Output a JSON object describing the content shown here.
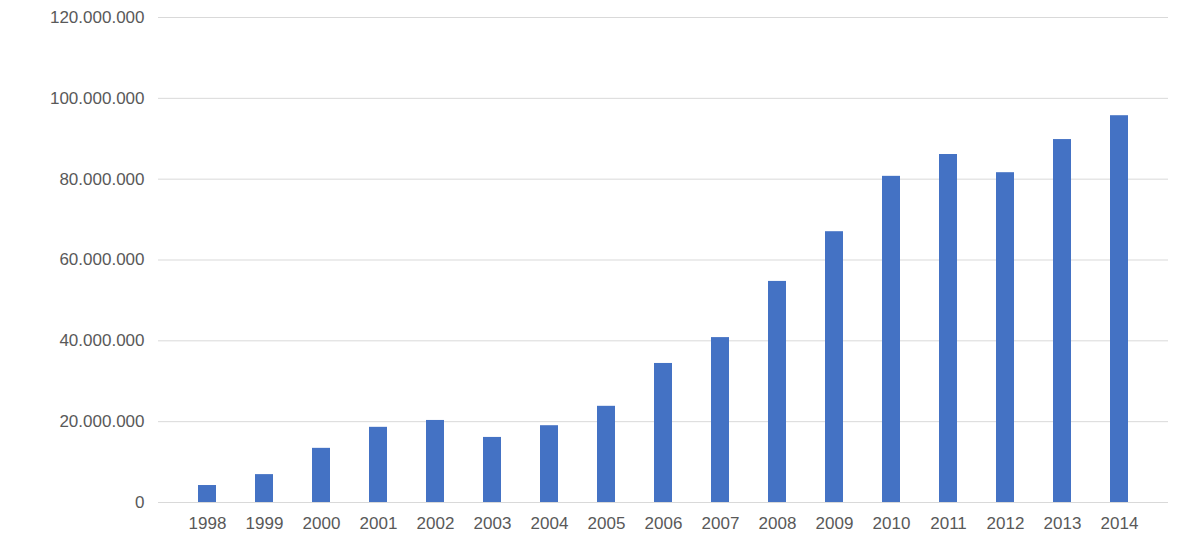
{
  "chart_data": {
    "type": "bar",
    "categories": [
      "1998",
      "1999",
      "2000",
      "2001",
      "2002",
      "2003",
      "2004",
      "2005",
      "2006",
      "2007",
      "2008",
      "2009",
      "2010",
      "2011",
      "2012",
      "2013",
      "2014"
    ],
    "values": [
      4200000,
      6900000,
      13400000,
      18600000,
      20300000,
      16100000,
      19000000,
      23800000,
      34400000,
      40800000,
      54700000,
      67000000,
      80700000,
      86100000,
      81600000,
      89800000,
      95700000
    ],
    "color": "#4472c4",
    "ylim": [
      0,
      120000000
    ],
    "yticks": [
      0,
      {
        "value": 20000000,
        "label": "20.000.000"
      },
      {
        "value": 40000000,
        "label": "40.000.000"
      },
      {
        "value": 60000000,
        "label": "60.000.000"
      },
      {
        "value": 80000000,
        "label": "80.000.000"
      },
      {
        "value": 100000000,
        "label": "100.000.000"
      },
      {
        "value": 120000000,
        "label": "120.000.000"
      }
    ],
    "grid": true
  }
}
